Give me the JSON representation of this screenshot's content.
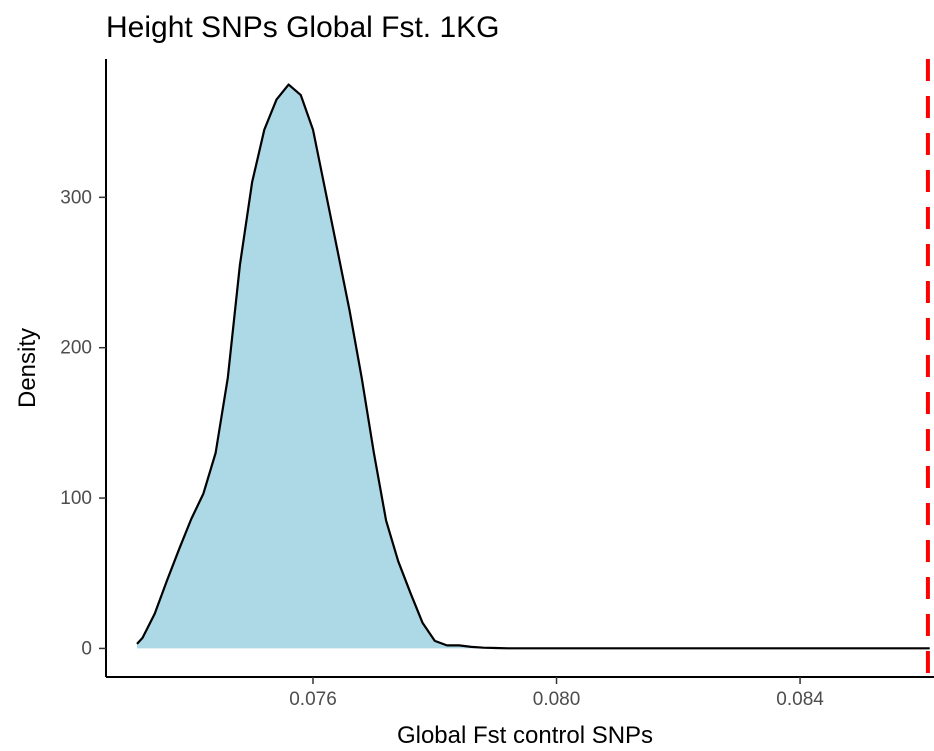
{
  "chart_data": {
    "type": "area",
    "title": "Height SNPs Global Fst. 1KG",
    "xlabel": "Global Fst control SNPs",
    "ylabel": "Density",
    "xlim": [
      0.0726,
      0.0862
    ],
    "ylim": [
      -19,
      392
    ],
    "x_ticks": [
      {
        "value": 0.076,
        "label": "0.076"
      },
      {
        "value": 0.08,
        "label": "0.080"
      },
      {
        "value": 0.084,
        "label": "0.084"
      }
    ],
    "y_ticks": [
      {
        "value": 0,
        "label": "0"
      },
      {
        "value": 100,
        "label": "100"
      },
      {
        "value": 200,
        "label": "200"
      },
      {
        "value": 300,
        "label": "300"
      }
    ],
    "grid": false,
    "legend": "none",
    "series": [
      {
        "x": [
          0.07311,
          0.0732,
          0.0734,
          0.0736,
          0.0738,
          0.074,
          0.0742,
          0.0744,
          0.0746,
          0.0748,
          0.075,
          0.0752,
          0.0754,
          0.0756,
          0.0758,
          0.076,
          0.0762,
          0.0764,
          0.0766,
          0.0768,
          0.077,
          0.0772,
          0.0774,
          0.0776,
          0.0778,
          0.078,
          0.0782,
          0.0784,
          0.0786,
          0.0788,
          0.079,
          0.0792,
          0.0794,
          0.0796,
          0.0798,
          0.08,
          0.0805,
          0.081,
          0.082,
          0.083,
          0.084,
          0.085,
          0.086,
          0.08613
        ],
        "y": [
          3,
          7,
          23,
          45,
          66,
          86,
          103,
          130,
          180,
          255,
          310,
          345,
          365,
          375,
          368,
          345,
          305,
          265,
          225,
          180,
          130,
          85,
          58,
          37,
          17,
          5,
          2,
          2,
          1,
          0.5,
          0.3,
          0.1,
          0.1,
          0.1,
          0.1,
          0.1,
          0.1,
          0.1,
          0.1,
          0.1,
          0.1,
          0.1,
          0.1,
          0.1
        ],
        "fill": "#ADD8E6",
        "stroke": "#000000"
      }
    ],
    "annotations": [
      {
        "type": "vline",
        "x": 0.0861,
        "color": "#FF0000",
        "style": "dashed"
      }
    ],
    "fill_end_x": 0.0795
  }
}
